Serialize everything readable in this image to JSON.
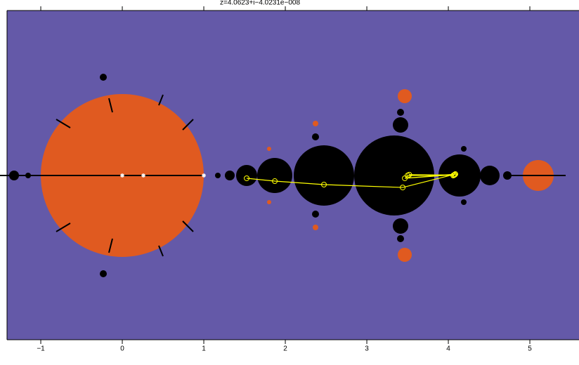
{
  "chart_data": {
    "type": "line",
    "title": "z=4.0623+i−4.0231e−008",
    "xlim": [
      -1.414,
      5.603
    ],
    "ylim": [
      -2.017,
      2.026
    ],
    "xticks": [
      {
        "value": -1,
        "label": "−1"
      },
      0,
      1,
      2,
      3,
      4,
      5
    ],
    "background": "#6459a8",
    "series": [
      {
        "color": "#ffff00",
        "marker": "circle",
        "line": true,
        "x": [
          1.526,
          1.871,
          2.474,
          3.44,
          4.086,
          3.466,
          4.078,
          3.5,
          4.07,
          3.52,
          4.06
        ],
        "values": [
          -0.034,
          -0.069,
          -0.112,
          -0.147,
          0.017,
          -0.034,
          0.01,
          0.0,
          0.005,
          0.01,
          0.0
        ]
      },
      {
        "color": "#ffffff",
        "marker": "asterisk",
        "line": false,
        "x": [
          0,
          0.259,
          1.0
        ],
        "values": [
          0,
          0,
          0
        ]
      }
    ]
  }
}
